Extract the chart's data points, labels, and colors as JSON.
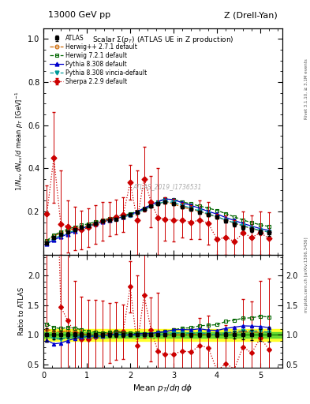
{
  "title_left": "13000 GeV pp",
  "title_right": "Z (Drell-Yan)",
  "panel_title": "Scalar Σ(p_T) (ATLAS UE in Z production)",
  "ylabel_main": "1/N_{ev} dN_{ev}/d mean p_T [GeV]^{-1}",
  "ylabel_ratio": "Ratio to ATLAS",
  "xlabel": "Mean p_T/dη dφ",
  "right_label_top": "Rivet 3.1.10, ≥ 3.1M events",
  "right_label_bottom": "mcplots.cern.ch [arXiv:1306.3436]",
  "watermark": "ATLAS_2019_I1736531",
  "xlim": [
    0,
    5.5
  ],
  "ylim_main": [
    0.0,
    1.05
  ],
  "ylim_ratio": [
    0.45,
    2.35
  ],
  "atlas_x": [
    0.08,
    0.24,
    0.4,
    0.56,
    0.72,
    0.88,
    1.04,
    1.2,
    1.36,
    1.52,
    1.68,
    1.84,
    2.0,
    2.16,
    2.32,
    2.48,
    2.64,
    2.8,
    3.0,
    3.2,
    3.4,
    3.6,
    3.8,
    4.0,
    4.2,
    4.4,
    4.6,
    4.8,
    5.0,
    5.2
  ],
  "atlas_y": [
    0.055,
    0.08,
    0.095,
    0.105,
    0.115,
    0.125,
    0.135,
    0.145,
    0.155,
    0.16,
    0.165,
    0.175,
    0.185,
    0.195,
    0.21,
    0.225,
    0.235,
    0.245,
    0.235,
    0.22,
    0.21,
    0.195,
    0.185,
    0.175,
    0.155,
    0.14,
    0.125,
    0.115,
    0.105,
    0.1
  ],
  "atlas_yerr": [
    0.006,
    0.006,
    0.006,
    0.005,
    0.005,
    0.005,
    0.005,
    0.005,
    0.005,
    0.005,
    0.005,
    0.005,
    0.005,
    0.005,
    0.005,
    0.005,
    0.005,
    0.006,
    0.006,
    0.006,
    0.006,
    0.006,
    0.006,
    0.007,
    0.007,
    0.008,
    0.009,
    0.01,
    0.011,
    0.012
  ],
  "herwig271_x": [
    0.08,
    0.24,
    0.4,
    0.56,
    0.72,
    0.88,
    1.04,
    1.2,
    1.36,
    1.52,
    1.68,
    1.84,
    2.0,
    2.16,
    2.32,
    2.48,
    2.64,
    2.8,
    3.0,
    3.2,
    3.4,
    3.6,
    3.8,
    4.0,
    4.2,
    4.4,
    4.6,
    4.8,
    5.0,
    5.2
  ],
  "herwig271_y": [
    0.06,
    0.085,
    0.1,
    0.112,
    0.12,
    0.128,
    0.135,
    0.145,
    0.155,
    0.162,
    0.168,
    0.175,
    0.185,
    0.195,
    0.21,
    0.225,
    0.235,
    0.245,
    0.235,
    0.22,
    0.21,
    0.2,
    0.185,
    0.175,
    0.16,
    0.145,
    0.132,
    0.12,
    0.11,
    0.105
  ],
  "herwig721_x": [
    0.08,
    0.24,
    0.4,
    0.56,
    0.72,
    0.88,
    1.04,
    1.2,
    1.36,
    1.52,
    1.68,
    1.84,
    2.0,
    2.16,
    2.32,
    2.48,
    2.64,
    2.8,
    3.0,
    3.2,
    3.4,
    3.6,
    3.8,
    4.0,
    4.2,
    4.4,
    4.6,
    4.8,
    5.0,
    5.2
  ],
  "herwig721_y": [
    0.065,
    0.09,
    0.105,
    0.118,
    0.128,
    0.136,
    0.143,
    0.152,
    0.16,
    0.167,
    0.174,
    0.181,
    0.19,
    0.2,
    0.215,
    0.23,
    0.245,
    0.258,
    0.255,
    0.245,
    0.235,
    0.225,
    0.215,
    0.205,
    0.19,
    0.175,
    0.16,
    0.148,
    0.138,
    0.13
  ],
  "pythia8308_x": [
    0.08,
    0.24,
    0.4,
    0.56,
    0.72,
    0.88,
    1.04,
    1.2,
    1.36,
    1.52,
    1.68,
    1.84,
    2.0,
    2.16,
    2.32,
    2.48,
    2.64,
    2.8,
    3.0,
    3.2,
    3.4,
    3.6,
    3.8,
    4.0,
    4.2,
    4.4,
    4.6,
    4.8,
    5.0,
    5.2
  ],
  "pythia8308_y": [
    0.05,
    0.068,
    0.082,
    0.095,
    0.108,
    0.12,
    0.132,
    0.142,
    0.152,
    0.16,
    0.168,
    0.175,
    0.185,
    0.198,
    0.215,
    0.23,
    0.245,
    0.258,
    0.255,
    0.24,
    0.228,
    0.215,
    0.2,
    0.188,
    0.172,
    0.158,
    0.144,
    0.132,
    0.12,
    0.112
  ],
  "pythia8vincia_x": [
    0.08,
    0.24,
    0.4,
    0.56,
    0.72,
    0.88,
    1.04,
    1.2,
    1.36,
    1.52,
    1.68,
    1.84,
    2.0,
    2.16,
    2.32,
    2.48,
    2.64,
    2.8,
    3.0,
    3.2,
    3.4,
    3.6,
    3.8,
    4.0,
    4.2,
    4.4,
    4.6,
    4.8,
    5.0,
    5.2
  ],
  "pythia8vincia_y": [
    0.055,
    0.075,
    0.088,
    0.1,
    0.112,
    0.122,
    0.132,
    0.142,
    0.152,
    0.16,
    0.167,
    0.174,
    0.183,
    0.193,
    0.208,
    0.222,
    0.235,
    0.246,
    0.242,
    0.228,
    0.215,
    0.202,
    0.188,
    0.175,
    0.16,
    0.147,
    0.134,
    0.122,
    0.112,
    0.104
  ],
  "sherpa_x": [
    0.08,
    0.24,
    0.4,
    0.56,
    0.72,
    0.88,
    1.04,
    1.2,
    1.36,
    1.52,
    1.68,
    1.84,
    2.0,
    2.16,
    2.32,
    2.48,
    2.64,
    2.8,
    3.0,
    3.2,
    3.4,
    3.6,
    3.8,
    4.0,
    4.2,
    4.4,
    4.6,
    4.8,
    5.0,
    5.2
  ],
  "sherpa_y": [
    0.19,
    0.45,
    0.14,
    0.13,
    0.12,
    0.115,
    0.125,
    0.14,
    0.155,
    0.165,
    0.175,
    0.185,
    0.335,
    0.16,
    0.35,
    0.245,
    0.17,
    0.165,
    0.16,
    0.16,
    0.15,
    0.16,
    0.145,
    0.07,
    0.08,
    0.06,
    0.1,
    0.08,
    0.1,
    0.075
  ],
  "sherpa_yerr_up": [
    0.13,
    0.21,
    0.25,
    0.12,
    0.1,
    0.09,
    0.09,
    0.09,
    0.09,
    0.08,
    0.08,
    0.08,
    0.08,
    0.23,
    0.15,
    0.12,
    0.23,
    0.1,
    0.1,
    0.08,
    0.08,
    0.09,
    0.1,
    0.12,
    0.1,
    0.1,
    0.1,
    0.1,
    0.1,
    0.12
  ],
  "sherpa_yerr_dn": [
    0.13,
    0.21,
    0.14,
    0.12,
    0.1,
    0.09,
    0.09,
    0.09,
    0.09,
    0.08,
    0.08,
    0.08,
    0.08,
    0.16,
    0.15,
    0.12,
    0.17,
    0.1,
    0.1,
    0.08,
    0.08,
    0.09,
    0.1,
    0.07,
    0.08,
    0.06,
    0.1,
    0.08,
    0.1,
    0.075
  ],
  "atlas_color": "#000000",
  "herwig271_color": "#cc6600",
  "herwig721_color": "#006600",
  "pythia8308_color": "#0000cc",
  "pythia8vincia_color": "#009999",
  "sherpa_color": "#cc0000",
  "band_yellow": [
    0.9,
    1.1
  ],
  "band_green": [
    0.95,
    1.05
  ],
  "yticks_main": [
    0.2,
    0.4,
    0.6,
    0.8,
    1.0
  ],
  "yticks_ratio": [
    0.5,
    1.0,
    1.5,
    2.0
  ],
  "xticks": [
    0,
    1,
    2,
    3,
    4,
    5
  ]
}
